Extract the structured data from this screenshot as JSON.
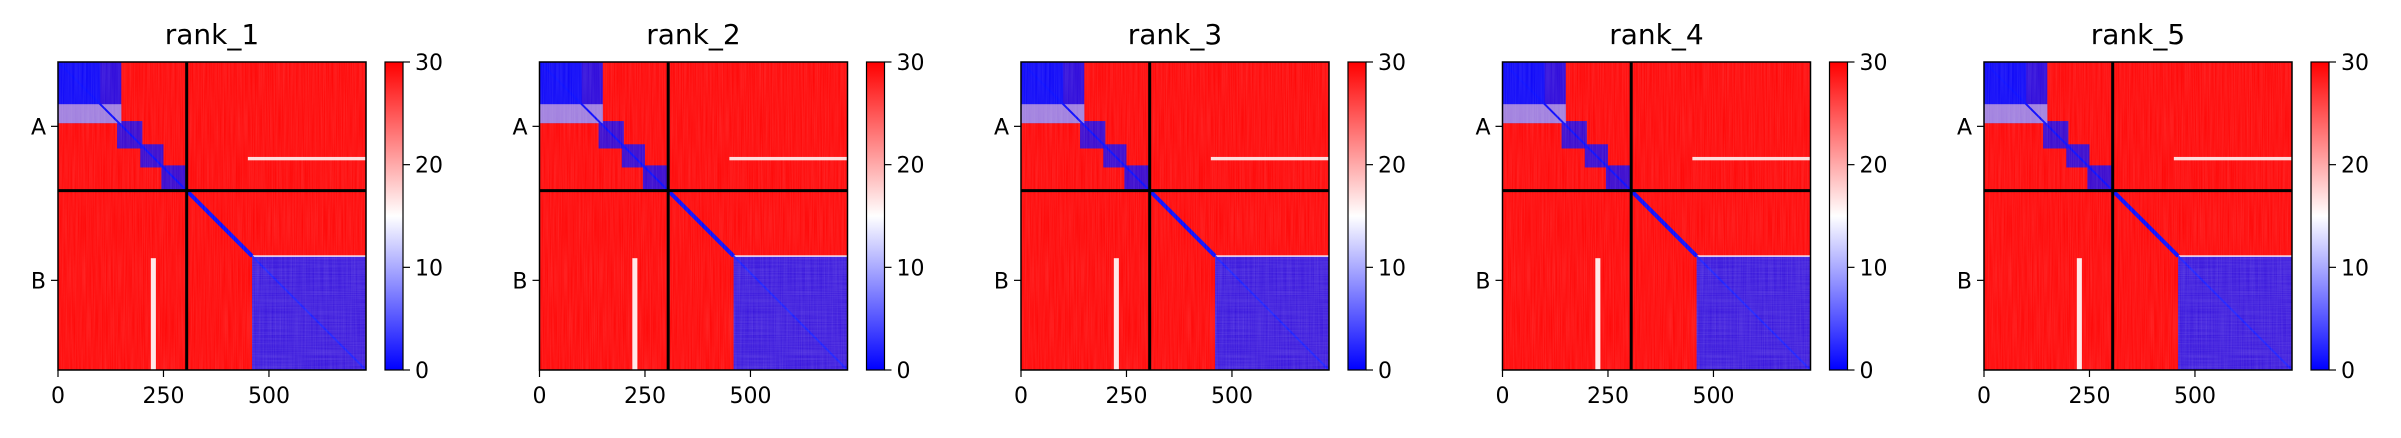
{
  "chart_data": {
    "type": "heatmap",
    "description_colormap": "bwr",
    "colors": {
      "low": "#0000ff",
      "mid": "#ffffff",
      "high": "#ff0000",
      "divider": "#000000"
    },
    "color_range": [
      0,
      30
    ],
    "colorbar_ticks": [
      "0",
      "10",
      "20",
      "30"
    ],
    "x_ticks": [
      "0",
      "250",
      "500"
    ],
    "x_tick_values": [
      0,
      250,
      500
    ],
    "x_range": [
      0,
      730
    ],
    "y_ticks": [
      "A",
      "B"
    ],
    "chain_boundary": 305,
    "total_length": 730,
    "panels": [
      {
        "title": "rank_1"
      },
      {
        "title": "rank_2"
      },
      {
        "title": "rank_3"
      },
      {
        "title": "rank_4"
      },
      {
        "title": "rank_5"
      }
    ]
  }
}
